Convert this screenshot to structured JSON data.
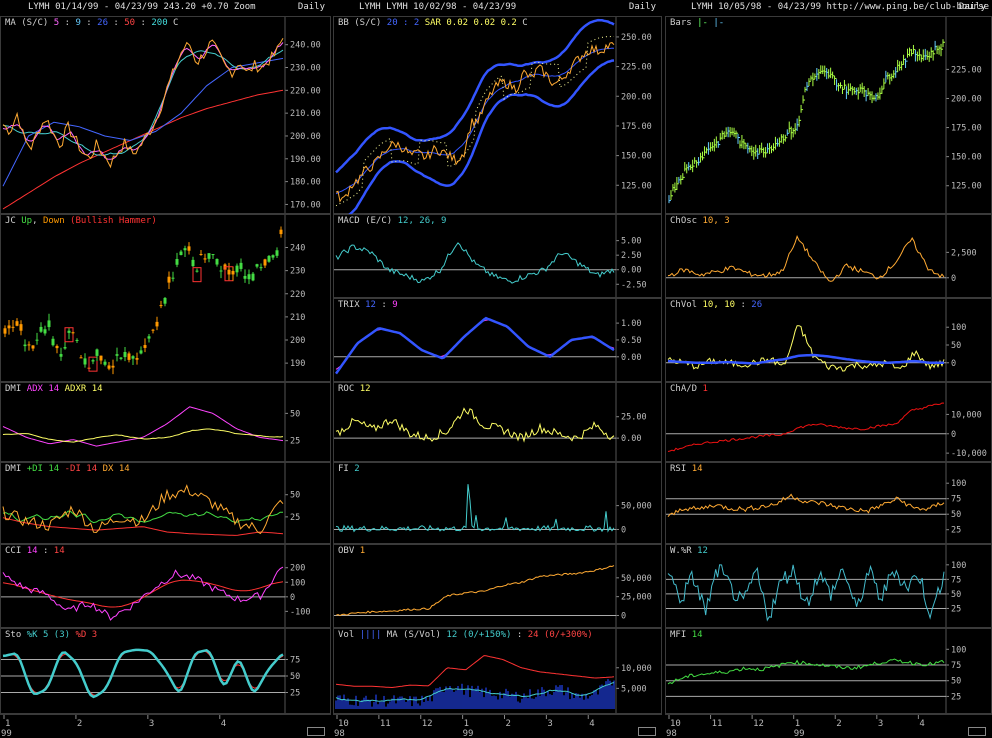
{
  "columns": [
    {
      "title": "LYMH  01/14/99 - 04/23/99   243.20  +0.70   Zoom",
      "period": "Daily",
      "x_ticks": [
        "1",
        "2",
        "3",
        "4"
      ],
      "x_year": "99",
      "panels": [
        {
          "key": "ma",
          "label": [
            {
              "t": "MA (S/C) ",
              "c": "#d0d0d0"
            },
            {
              "t": "5",
              "c": "#ff66ff"
            },
            {
              "t": " : ",
              "c": "#d0d0d0"
            },
            {
              "t": "9",
              "c": "#66ccff"
            },
            {
              "t": " : ",
              "c": "#d0d0d0"
            },
            {
              "t": "26",
              "c": "#4466ff"
            },
            {
              "t": " : ",
              "c": "#d0d0d0"
            },
            {
              "t": "50",
              "c": "#ff4444"
            },
            {
              "t": " : ",
              "c": "#d0d0d0"
            },
            {
              "t": "200",
              "c": "#44dddd"
            },
            {
              "t": "   C ",
              "c": "#d0d0d0"
            }
          ],
          "y_ticks": [
            "240.00",
            "230.00",
            "220.00",
            "210.00",
            "200.00",
            "190.00",
            "180.00",
            "170.00"
          ],
          "ylim": [
            168,
            246
          ]
        },
        {
          "key": "jc",
          "label": [
            {
              "t": "JC ",
              "c": "#d0d0d0"
            },
            {
              "t": "Up",
              "c": "#44dd44"
            },
            {
              "t": ", ",
              "c": "#d0d0d0"
            },
            {
              "t": "Down",
              "c": "#ff9900"
            },
            {
              "t": "  (Bullish Hammer)",
              "c": "#ff3333"
            }
          ],
          "y_ticks": [
            "240",
            "230",
            "220",
            "210",
            "200",
            "190"
          ],
          "ylim": [
            184,
            248
          ]
        },
        {
          "key": "dmi1",
          "label": [
            {
              "t": "DMI ",
              "c": "#d0d0d0"
            },
            {
              "t": "ADX 14",
              "c": "#ff44ff"
            },
            {
              "t": "  ",
              "c": "#d0d0d0"
            },
            {
              "t": "ADXR 14",
              "c": "#ffff66"
            }
          ],
          "y_ticks": [
            "50",
            "25"
          ],
          "ylim": [
            10,
            65
          ]
        },
        {
          "key": "dmi2",
          "label": [
            {
              "t": "DMI ",
              "c": "#d0d0d0"
            },
            {
              "t": "+DI 14",
              "c": "#44dd44"
            },
            {
              "t": "  ",
              "c": "#d0d0d0"
            },
            {
              "t": "-DI 14",
              "c": "#ff4444"
            },
            {
              "t": "  ",
              "c": "#d0d0d0"
            },
            {
              "t": "DX 14",
              "c": "#ffaa33"
            }
          ],
          "y_ticks": [
            "50",
            "25"
          ],
          "ylim": [
            0,
            70
          ]
        },
        {
          "key": "cci",
          "label": [
            {
              "t": "CCI ",
              "c": "#d0d0d0"
            },
            {
              "t": "14",
              "c": "#ff44ff"
            },
            {
              "t": " : ",
              "c": "#d0d0d0"
            },
            {
              "t": "14",
              "c": "#ff4444"
            }
          ],
          "y_ticks": [
            "200",
            "100",
            "0",
            "-100"
          ],
          "ylim": [
            -180,
            260
          ]
        },
        {
          "key": "sto",
          "label": [
            {
              "t": "Sto ",
              "c": "#d0d0d0"
            },
            {
              "t": "%K 5 (3)",
              "c": "#44cccc"
            },
            {
              "t": "  ",
              "c": "#d0d0d0"
            },
            {
              "t": "%D 3",
              "c": "#ff4444"
            }
          ],
          "y_ticks": [
            "75",
            "50",
            "25"
          ],
          "ylim": [
            0,
            100
          ]
        }
      ]
    },
    {
      "title": "LYMH  LYMH  10/02/98 - 04/23/99",
      "period": "Daily",
      "x_ticks": [
        "10",
        "11",
        "12",
        "1",
        "2",
        "3",
        "4"
      ],
      "x_year_a": "98",
      "x_year_b": "99",
      "panels": [
        {
          "key": "bb",
          "label": [
            {
              "t": "BB (S/C) ",
              "c": "#d0d0d0"
            },
            {
              "t": "20 : 2",
              "c": "#4466ff"
            },
            {
              "t": "   ",
              "c": "#d0d0d0"
            },
            {
              "t": "SAR  0.02  0.02  0.2",
              "c": "#ffff66"
            },
            {
              "t": "   C ",
              "c": "#d0d0d0"
            }
          ],
          "y_ticks": [
            "250.00",
            "225.00",
            "200.00",
            "175.00",
            "150.00",
            "125.00"
          ],
          "ylim": [
            105,
            255
          ]
        },
        {
          "key": "macd",
          "label": [
            {
              "t": "MACD (E/C) ",
              "c": "#d0d0d0"
            },
            {
              "t": "12, 26, 9",
              "c": "#44cccc"
            }
          ],
          "y_ticks": [
            "5.00",
            "2.50",
            "0.00",
            "-2.50"
          ],
          "ylim": [
            -4,
            7
          ]
        },
        {
          "key": "trix",
          "label": [
            {
              "t": "TRIX ",
              "c": "#d0d0d0"
            },
            {
              "t": "12",
              "c": "#4466ff"
            },
            {
              "t": " : ",
              "c": "#d0d0d0"
            },
            {
              "t": "9",
              "c": "#ff44ff"
            }
          ],
          "y_ticks": [
            "1.00",
            "0.50",
            "0.00"
          ],
          "ylim": [
            -0.6,
            1.3
          ]
        },
        {
          "key": "roc",
          "label": [
            {
              "t": "ROC ",
              "c": "#d0d0d0"
            },
            {
              "t": "12",
              "c": "#ffff66"
            }
          ],
          "y_ticks": [
            "25.00",
            "0.00"
          ],
          "ylim": [
            -22,
            48
          ]
        },
        {
          "key": "fi",
          "label": [
            {
              "t": "FI ",
              "c": "#d0d0d0"
            },
            {
              "t": "2",
              "c": "#44cccc"
            }
          ],
          "y_ticks": [
            "50,000",
            "0"
          ],
          "ylim": [
            -20000,
            110000
          ]
        },
        {
          "key": "obv",
          "label": [
            {
              "t": "OBV ",
              "c": "#d0d0d0"
            },
            {
              "t": "1",
              "c": "#ffaa33"
            }
          ],
          "y_ticks": [
            "50,000",
            "25,000",
            "0"
          ],
          "ylim": [
            -10000,
            75000
          ]
        },
        {
          "key": "vol",
          "label": [
            {
              "t": "Vol ",
              "c": "#d0d0d0"
            },
            {
              "t": "||||",
              "c": "#4466ff"
            },
            {
              "t": "   MA (S/Vol) ",
              "c": "#d0d0d0"
            },
            {
              "t": "12 (0/+150%)",
              "c": "#44cccc"
            },
            {
              "t": " : ",
              "c": "#d0d0d0"
            },
            {
              "t": "24 (0/+300%)",
              "c": "#ff4444"
            }
          ],
          "y_ticks": [
            "10,000",
            "5,000"
          ],
          "ylim": [
            0,
            16000
          ]
        }
      ]
    },
    {
      "title": "LYMH  10/05/98 - 04/23/99   http://www.ping.be/club-bourse",
      "period": "Daily",
      "x_ticks": [
        "10",
        "11",
        "12",
        "1",
        "2",
        "3",
        "4"
      ],
      "x_year_a": "98",
      "x_year_b": "99",
      "panels": [
        {
          "key": "bars",
          "label": [
            {
              "t": "Bars ",
              "c": "#d0d0d0"
            },
            {
              "t": "|- ",
              "c": "#66ff66"
            },
            {
              "t": "|-",
              "c": "#66ccff"
            }
          ],
          "y_ticks": [
            "225.00",
            "200.00",
            "175.00",
            "150.00",
            "125.00"
          ],
          "ylim": [
            105,
            258
          ]
        },
        {
          "key": "chosc",
          "label": [
            {
              "t": "ChOsc ",
              "c": "#d0d0d0"
            },
            {
              "t": "10, 3",
              "c": "#ffaa33"
            }
          ],
          "y_ticks": [
            "2,500",
            "0"
          ],
          "ylim": [
            -1500,
            4800
          ]
        },
        {
          "key": "chvol",
          "label": [
            {
              "t": "ChVol ",
              "c": "#d0d0d0"
            },
            {
              "t": "10, 10",
              "c": "#ffff66"
            },
            {
              "t": " : ",
              "c": "#d0d0d0"
            },
            {
              "t": "26",
              "c": "#4466ff"
            }
          ],
          "y_ticks": [
            "100",
            "50",
            "0"
          ],
          "ylim": [
            -40,
            140
          ]
        },
        {
          "key": "chad",
          "label": [
            {
              "t": "ChA/D ",
              "c": "#d0d0d0"
            },
            {
              "t": "1",
              "c": "#ff3333"
            }
          ],
          "y_ticks": [
            "10,000",
            "0",
            "-10,000"
          ],
          "ylim": [
            -12000,
            19000
          ]
        },
        {
          "key": "rsi",
          "label": [
            {
              "t": "RSI ",
              "c": "#d0d0d0"
            },
            {
              "t": "14",
              "c": "#ffaa33"
            }
          ],
          "y_ticks": [
            "100",
            "75",
            "50",
            "25"
          ],
          "ylim": [
            10,
            110
          ]
        },
        {
          "key": "wr",
          "label": [
            {
              "t": "W.%R ",
              "c": "#d0d0d0"
            },
            {
              "t": "12",
              "c": "#44cccc"
            }
          ],
          "y_ticks": [
            "100",
            "75",
            "50",
            "25"
          ],
          "ylim": [
            0,
            110
          ]
        },
        {
          "key": "mfi",
          "label": [
            {
              "t": "MFI ",
              "c": "#d0d0d0"
            },
            {
              "t": "14",
              "c": "#44dd44"
            }
          ],
          "y_ticks": [
            "100",
            "75",
            "50",
            "25"
          ],
          "ylim": [
            5,
            110
          ]
        }
      ]
    }
  ],
  "chart_data": [
    {
      "type": "line",
      "title": "LYMH 01/14/99 - 04/23/99 (MA S/C 5:9:26:50:200)",
      "ylim": [
        168,
        246
      ],
      "series": [
        {
          "name": "C",
          "values": [
            205,
            202,
            210,
            198,
            195,
            203,
            208,
            201,
            196,
            204,
            199,
            193,
            190,
            196,
            192,
            188,
            193,
            197,
            192,
            195,
            200,
            205,
            213,
            222,
            230,
            238,
            240,
            232,
            236,
            241,
            236,
            230,
            228,
            233,
            227,
            231,
            230,
            233,
            236,
            243
          ]
        }
      ]
    },
    {
      "type": "line",
      "title": "LYMH 10/02/98 - 04/23/99 (BB / SAR / Close)",
      "ylim": [
        105,
        255
      ],
      "series": [
        {
          "name": "Close",
          "values": [
            118,
            112,
            125,
            130,
            138,
            142,
            150,
            158,
            160,
            156,
            150,
            152,
            148,
            155,
            154,
            150,
            146,
            152,
            178,
            180,
            195,
            206,
            212,
            210,
            206,
            220,
            215,
            224,
            218,
            210,
            214,
            222,
            230,
            236,
            240,
            238,
            242,
            243
          ]
        }
      ]
    },
    {
      "type": "bar",
      "title": "LYMH Bars 10/05/98 - 04/23/99",
      "ylim": [
        105,
        258
      ],
      "series": [
        {
          "name": "Close",
          "values": [
            115,
            128,
            138,
            144,
            150,
            158,
            162,
            170,
            172,
            160,
            158,
            154,
            156,
            160,
            166,
            172,
            176,
            212,
            218,
            222,
            220,
            212,
            208,
            206,
            210,
            200,
            204,
            218,
            224,
            232,
            240,
            238,
            236,
            242,
            246
          ]
        }
      ]
    }
  ]
}
